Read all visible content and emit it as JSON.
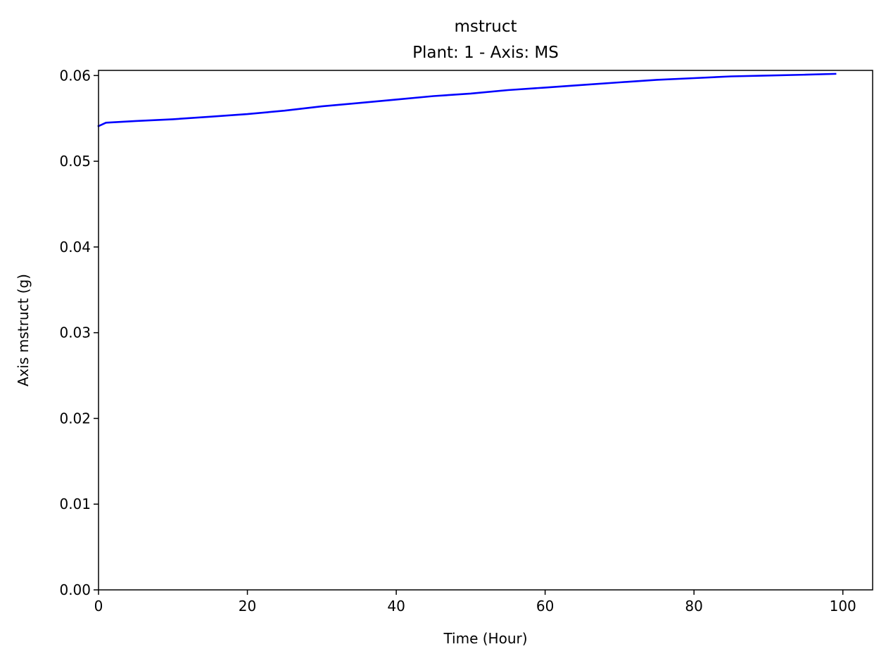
{
  "chart_data": {
    "type": "line",
    "title": "mstruct",
    "subtitle": "Plant: 1 - Axis: MS",
    "xlabel": "Time (Hour)",
    "ylabel": "Axis mstruct (g)",
    "xlim": [
      0,
      104
    ],
    "ylim": [
      0,
      0.0606
    ],
    "xticks": [
      0,
      20,
      40,
      60,
      80,
      100
    ],
    "xtick_labels": [
      "0",
      "20",
      "40",
      "60",
      "80",
      "100"
    ],
    "yticks": [
      0,
      0.01,
      0.02,
      0.03,
      0.04,
      0.05,
      0.06
    ],
    "ytick_labels": [
      "0.00",
      "0.01",
      "0.02",
      "0.03",
      "0.04",
      "0.05",
      "0.06"
    ],
    "grid": false,
    "series": [
      {
        "color": "#0000ff",
        "x": [
          0,
          1,
          5,
          10,
          15,
          20,
          25,
          30,
          35,
          40,
          45,
          50,
          55,
          60,
          65,
          70,
          75,
          80,
          85,
          90,
          95,
          99
        ],
        "y": [
          0.0541,
          0.0545,
          0.0547,
          0.0549,
          0.0552,
          0.0555,
          0.0559,
          0.0564,
          0.0568,
          0.0572,
          0.0576,
          0.0579,
          0.0583,
          0.0586,
          0.0589,
          0.0592,
          0.0595,
          0.0597,
          0.0599,
          0.06,
          0.0601,
          0.0602
        ]
      }
    ]
  }
}
